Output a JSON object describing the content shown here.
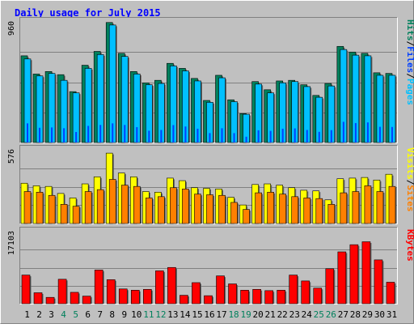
{
  "title": "Daily usage for July 2015",
  "panels": {
    "top": {
      "max_label": "960",
      "legend": [
        {
          "text": "Hits",
          "color": "#00805c"
        },
        {
          "text": "/",
          "color": "#000000"
        },
        {
          "text": "Files",
          "color": "#0040ff"
        },
        {
          "text": "/",
          "color": "#000000"
        },
        {
          "text": "Pages",
          "color": "#00c0ff"
        }
      ]
    },
    "middle": {
      "max_label": "576",
      "legend": [
        {
          "text": "Visits",
          "color": "#ffff00"
        },
        {
          "text": "/",
          "color": "#000000"
        },
        {
          "text": "Sites",
          "color": "#ff8000"
        }
      ]
    },
    "bottom": {
      "max_label": "17103",
      "legend": [
        {
          "text": "KBytes",
          "color": "#ff0000"
        }
      ]
    }
  },
  "chart_data": {
    "type": "bar",
    "categories": [
      "1",
      "2",
      "3",
      "4",
      "5",
      "6",
      "7",
      "8",
      "9",
      "10",
      "11",
      "12",
      "13",
      "14",
      "15",
      "16",
      "17",
      "18",
      "19",
      "20",
      "21",
      "22",
      "23",
      "24",
      "25",
      "26",
      "27",
      "28",
      "29",
      "30",
      "31"
    ],
    "weekend_days": [
      "4",
      "5",
      "11",
      "12",
      "18",
      "19",
      "25",
      "26"
    ],
    "colors": {
      "hits": "#00805c",
      "files": "#0040ff",
      "pages": "#00c0ff",
      "visits": "#ffff00",
      "sites": "#ff8000",
      "kbytes": "#ff0000",
      "weekday_label": "#000000",
      "weekend_label": "#00805c",
      "title": "#0000ff",
      "panel_bg": "#c0c0c0",
      "page_bg": "#ffffff"
    },
    "ylim_top": [
      0,
      960
    ],
    "ylim_middle": [
      0,
      576
    ],
    "ylim_bottom": [
      0,
      17103
    ],
    "grid": true,
    "series_top": [
      {
        "name": "Hits",
        "values": [
          690,
          545,
          565,
          540,
          405,
          615,
          725,
          955,
          710,
          565,
          475,
          495,
          630,
          590,
          510,
          335,
          535,
          340,
          230,
          485,
          420,
          490,
          495,
          460,
          375,
          470,
          765,
          720,
          710,
          555,
          550
        ]
      },
      {
        "name": "Files",
        "values": [
          610,
          470,
          480,
          455,
          335,
          530,
          560,
          610,
          560,
          490,
          375,
          400,
          555,
          510,
          440,
          300,
          455,
          300,
          185,
          390,
          370,
          440,
          450,
          400,
          340,
          395,
          660,
          620,
          640,
          500,
          495
        ]
      },
      {
        "name": "Pages",
        "values": [
          665,
          530,
          550,
          495,
          395,
          590,
          700,
          935,
          685,
          545,
          460,
          470,
          610,
          570,
          490,
          320,
          515,
          325,
          225,
          465,
          395,
          475,
          485,
          445,
          360,
          450,
          740,
          695,
          690,
          535,
          535
        ]
      }
    ],
    "series_middle": [
      {
        "name": "Visits",
        "values": [
          315,
          295,
          290,
          235,
          200,
          310,
          365,
          550,
          395,
          365,
          250,
          245,
          355,
          335,
          280,
          275,
          270,
          205,
          145,
          305,
          310,
          300,
          280,
          260,
          255,
          185,
          350,
          355,
          360,
          340,
          385
        ]
      },
      {
        "name": "Sites",
        "values": [
          250,
          245,
          220,
          150,
          135,
          250,
          265,
          345,
          300,
          290,
          200,
          210,
          280,
          270,
          230,
          225,
          220,
          165,
          110,
          240,
          245,
          230,
          210,
          200,
          195,
          150,
          240,
          250,
          295,
          250,
          290
        ]
      }
    ],
    "series_bottom": [
      {
        "name": "KBytes",
        "values": [
          6800,
          2600,
          1500,
          5800,
          2700,
          1800,
          8000,
          5700,
          3500,
          3200,
          3400,
          7800,
          8600,
          2000,
          5000,
          1900,
          6600,
          4700,
          3200,
          3400,
          3100,
          3200,
          6800,
          5400,
          3700,
          8300,
          12300,
          14000,
          14700,
          10400,
          5100
        ]
      }
    ]
  }
}
